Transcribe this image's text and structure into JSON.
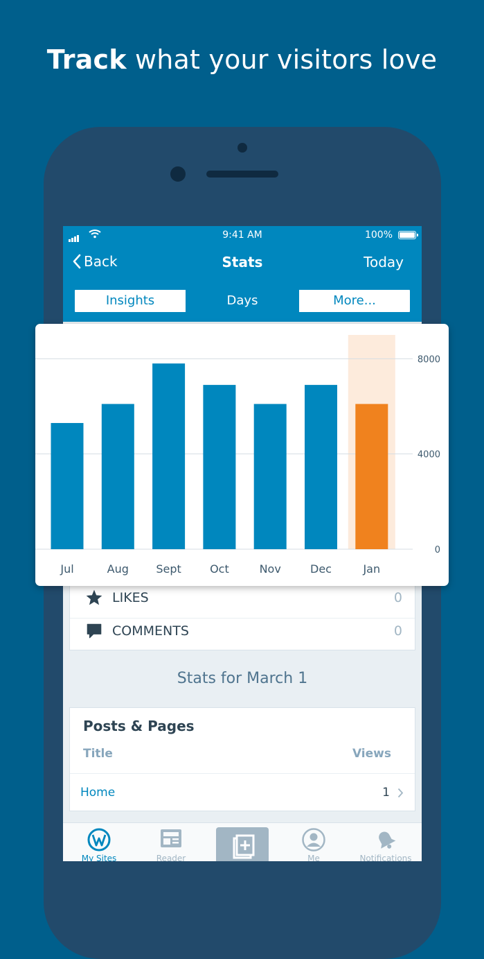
{
  "headline": {
    "bold": "Track",
    "rest": " what your visitors love"
  },
  "status_bar": {
    "time": "9:41 AM",
    "battery": "100%"
  },
  "navbar": {
    "back_label": "Back",
    "title": "Stats",
    "right_label": "Today"
  },
  "segments": [
    {
      "label": "Insights",
      "active": false
    },
    {
      "label": "Days",
      "active": true
    },
    {
      "label": "More...",
      "active": false
    }
  ],
  "stat_rows": [
    {
      "icon": "star-icon",
      "label": "LIKES",
      "value": "0"
    },
    {
      "icon": "comment-icon",
      "label": "COMMENTS",
      "value": "0"
    }
  ],
  "stats_date": "Stats for March 1",
  "posts_pages": {
    "title": "Posts & Pages",
    "col_title": "Title",
    "col_views": "Views",
    "rows": [
      {
        "name": "Home",
        "views": "1"
      }
    ]
  },
  "tabs": [
    {
      "label": "My Sites",
      "icon": "wordpress-icon",
      "active": true
    },
    {
      "label": "Reader",
      "icon": "reader-icon",
      "active": false
    },
    {
      "label": "",
      "icon": "write-post-icon",
      "active": false
    },
    {
      "label": "Me",
      "icon": "person-icon",
      "active": false
    },
    {
      "label": "Notifications",
      "icon": "bell-icon",
      "active": false
    }
  ],
  "colors": {
    "brand": "#0087be",
    "highlight": "#f0821e",
    "highlight_bg": "#fdebdc",
    "background": "#005f8c"
  },
  "chart_data": {
    "type": "bar",
    "categories": [
      "Jul",
      "Aug",
      "Sept",
      "Oct",
      "Nov",
      "Dec",
      "Jan"
    ],
    "values": [
      5300,
      6100,
      7800,
      6900,
      6100,
      6900,
      6100
    ],
    "highlighted": "Jan",
    "yticks": [
      0,
      4000,
      8000
    ],
    "ylim": [
      0,
      9000
    ],
    "axis_side": "right",
    "grid": true
  }
}
